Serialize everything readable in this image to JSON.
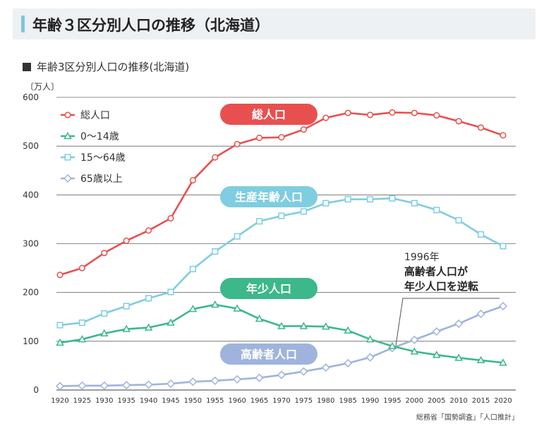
{
  "header": {
    "title": "年齢３区分別人口の推移（北海道）"
  },
  "chart_subtitle": "年齢3区分別人口の推移(北海道)",
  "source": "総務省「国勢調査」「人口推計」",
  "colors": {
    "total": "#e85050",
    "youth": "#3cb88a",
    "working": "#7fcde0",
    "elderly": "#9fb3dc",
    "grid": "#666666"
  },
  "chart_data": {
    "type": "line",
    "ylabel": "〔万人〕",
    "ylim": [
      0,
      600
    ],
    "yticks": [
      0,
      100,
      200,
      300,
      400,
      500,
      600
    ],
    "grid": true,
    "legend_position": "top-left",
    "x": [
      "1920",
      "1925",
      "1930",
      "1935",
      "1940",
      "1945",
      "1950",
      "1955",
      "1960",
      "1965",
      "1970",
      "1975",
      "1980",
      "1985",
      "1990",
      "1995",
      "2000",
      "2005",
      "2010",
      "2015",
      "2020"
    ],
    "series": [
      {
        "key": "total",
        "name": "総人口",
        "marker": "circle",
        "line_label": "総人口",
        "values": [
          236,
          250,
          281,
          306,
          327,
          352,
          430,
          477,
          504,
          517,
          518,
          534,
          558,
          568,
          564,
          569,
          568,
          563,
          551,
          538,
          522
        ]
      },
      {
        "key": "youth",
        "name": "0〜14歳",
        "marker": "triangle",
        "line_label": "年少人口",
        "values": [
          97,
          104,
          116,
          125,
          128,
          138,
          166,
          175,
          167,
          146,
          131,
          131,
          130,
          122,
          104,
          90,
          79,
          72,
          66,
          61,
          56
        ]
      },
      {
        "key": "working",
        "name": "15〜64歳",
        "marker": "square",
        "line_label": "生産年齢人口",
        "values": [
          133,
          138,
          157,
          172,
          188,
          201,
          248,
          284,
          315,
          346,
          357,
          366,
          383,
          391,
          391,
          393,
          383,
          369,
          348,
          319,
          295
        ]
      },
      {
        "key": "elderly",
        "name": "65歳以上",
        "marker": "diamond",
        "line_label": "高齢者人口",
        "values": [
          8,
          9,
          9,
          10,
          11,
          13,
          17,
          19,
          22,
          25,
          31,
          38,
          46,
          55,
          67,
          86,
          103,
          120,
          136,
          156,
          172
        ]
      }
    ],
    "annotation": {
      "year_text": "1996年",
      "line1": "高齢者人口が",
      "line2": "年少人口を逆転"
    }
  }
}
